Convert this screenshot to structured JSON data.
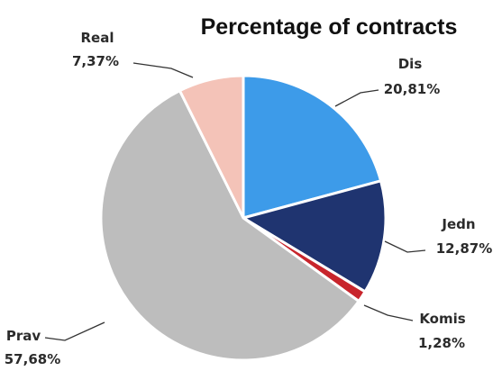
{
  "chart_data": {
    "type": "pie",
    "title": "Percentage of contracts",
    "slices": [
      {
        "name": "Dis",
        "value": 20.81,
        "label": "20,81%",
        "color": "#3d9be9"
      },
      {
        "name": "Jedn",
        "value": 12.87,
        "label": "12,87%",
        "color": "#1f3470"
      },
      {
        "name": "Komis",
        "value": 1.28,
        "label": "1,28%",
        "color": "#c8252c"
      },
      {
        "name": "Prav",
        "value": 57.68,
        "label": "57,68%",
        "color": "#bdbdbd"
      },
      {
        "name": "Real",
        "value": 7.37,
        "label": "7,37%",
        "color": "#f4c3b8"
      }
    ],
    "start": "12 o'clock",
    "direction": "clockwise",
    "legend": "none"
  }
}
